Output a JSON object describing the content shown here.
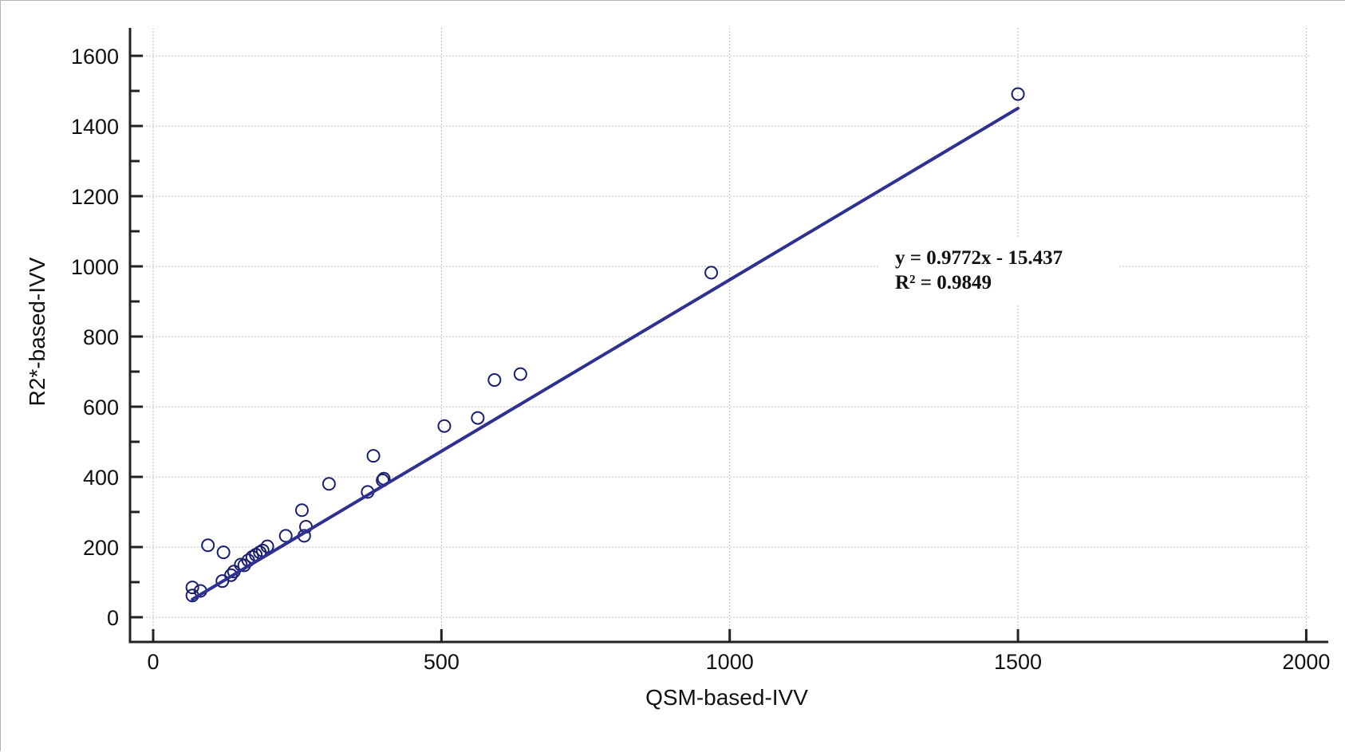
{
  "chart_data": {
    "type": "scatter",
    "title": "",
    "xlabel": "QSM-based-IVV",
    "ylabel": "R2*-based-IVV",
    "xlim": [
      0,
      2000
    ],
    "ylim": [
      0,
      1600
    ],
    "xticks": [
      0,
      500,
      1000,
      1500,
      2000
    ],
    "yticks": [
      0,
      200,
      400,
      600,
      800,
      1000,
      1200,
      1400,
      1600
    ],
    "x_minor_step": 500,
    "y_minor_step": 100,
    "grid": true,
    "colors": {
      "marker": "#1a1f6e",
      "line": "#2e3192",
      "axis": "#222222",
      "grid": "#bfbfbf"
    },
    "series": [
      {
        "name": "IVV",
        "marker": "open-circle",
        "points": [
          [
            68,
            85
          ],
          [
            68,
            62
          ],
          [
            82,
            75
          ],
          [
            95,
            205
          ],
          [
            120,
            103
          ],
          [
            122,
            185
          ],
          [
            135,
            120
          ],
          [
            140,
            130
          ],
          [
            152,
            150
          ],
          [
            158,
            148
          ],
          [
            165,
            162
          ],
          [
            172,
            172
          ],
          [
            178,
            178
          ],
          [
            185,
            185
          ],
          [
            190,
            190
          ],
          [
            198,
            202
          ],
          [
            230,
            232
          ],
          [
            258,
            305
          ],
          [
            262,
            232
          ],
          [
            265,
            258
          ],
          [
            305,
            380
          ],
          [
            372,
            357
          ],
          [
            382,
            460
          ],
          [
            398,
            390
          ],
          [
            400,
            395
          ],
          [
            505,
            545
          ],
          [
            563,
            568
          ],
          [
            592,
            676
          ],
          [
            637,
            693
          ],
          [
            968,
            982
          ],
          [
            1500,
            1491
          ]
        ]
      }
    ],
    "trendline": {
      "slope": 0.9772,
      "intercept": -15.437,
      "x_range": [
        68,
        1500
      ],
      "equation": "y = 0.9772x - 15.437",
      "r2_text": "R² = 0.9849"
    }
  }
}
